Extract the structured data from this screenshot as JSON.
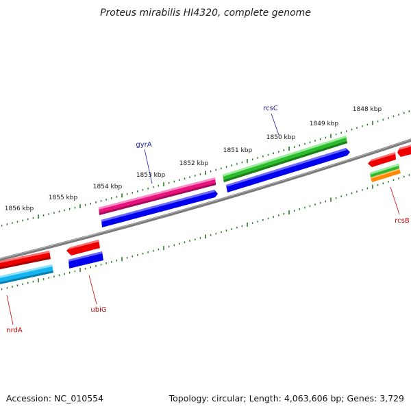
{
  "title": "Proteus mirabilis HI4320, complete genome",
  "footer": {
    "accession": "Accession: NC_010554",
    "summary": "Topology: circular; Length: 4,063,606 bp; Genes: 3,729"
  },
  "colors": {
    "backbone": "#7d7d7d",
    "tick": "#1f7a1f",
    "forward_label": "#1a1aa6",
    "reverse_label": "#cc0000",
    "red_gene": "#ee0000",
    "blue_gene": "#0000ee",
    "cyan_gene": "#14b4f0",
    "magenta_gene": "#e8137e",
    "green_gene": "#2fbb2f",
    "orange_gene": "#ff8800"
  },
  "kbp_labels": [
    "1856 kbp",
    "1855 kbp",
    "1854 kbp",
    "1853 kbp",
    "1852 kbp",
    "1851 kbp",
    "1850 kbp",
    "1849 kbp",
    "1848 kbp"
  ],
  "gene_labels": {
    "gyrA": "gyrA",
    "rcsC": "rcsC",
    "ubiG": "ubiG",
    "nrdA": "nrdA",
    "rcsB": "rcsB"
  }
}
